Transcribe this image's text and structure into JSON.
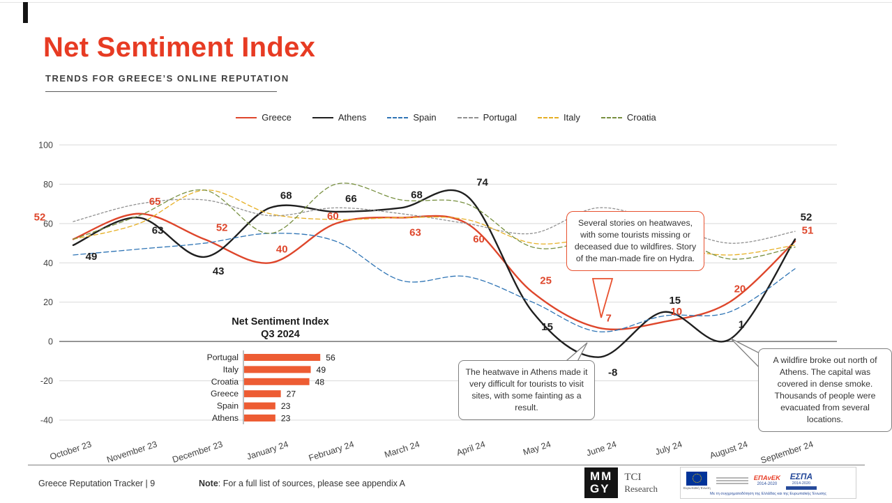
{
  "page": {
    "title": "Net Sentiment Index",
    "subtitle": "TRENDS FOR GREECE’S ONLINE REPUTATION"
  },
  "chart_data": [
    {
      "type": "line",
      "title": "Net Sentiment Index",
      "x": [
        "October 23",
        "November 23",
        "December 23",
        "January 24",
        "February 24",
        "March 24",
        "April 24",
        "May 24",
        "June 24",
        "July 24",
        "August 24",
        "September 24"
      ],
      "ylim": [
        -40,
        100
      ],
      "yticks": [
        100,
        80,
        60,
        40,
        20,
        0,
        -20,
        -40
      ],
      "grid": true,
      "legend_position": "top-center",
      "series": [
        {
          "name": "Greece",
          "color": "#de462b",
          "width": 2.4,
          "values": [
            52,
            65,
            52,
            40,
            60,
            63,
            60,
            25,
            7,
            10,
            20,
            51
          ],
          "point_labels": true,
          "label_dx": [
            -48,
            23,
            25,
            17,
            -4,
            20,
            17,
            19,
            15,
            18,
            15,
            18
          ],
          "label_dy": [
            -27,
            -13,
            -12,
            -15,
            -6,
            26,
            27,
            -12,
            -9,
            -10,
            -14,
            -11
          ]
        },
        {
          "name": "Athens",
          "color": "#1f1f1f",
          "width": 2.4,
          "values": [
            49,
            63,
            43,
            68,
            66,
            68,
            74,
            15,
            -8,
            15,
            1,
            52
          ],
          "point_labels": true,
          "label_dx": [
            26,
            27,
            20,
            23,
            22,
            22,
            22,
            21,
            21,
            16,
            17,
            16
          ],
          "label_dy": [
            21,
            23,
            25,
            -13,
            -14,
            -14,
            -15,
            26,
            27,
            -12,
            -17,
            -27
          ]
        },
        {
          "name": "Spain",
          "color": "#2e74b5",
          "width": 1.3,
          "dash_pattern": "7 4",
          "values": [
            44,
            47,
            50,
            55,
            51,
            31,
            33,
            20,
            5,
            13,
            15,
            37
          ],
          "point_labels": false
        },
        {
          "name": "Portugal",
          "color": "#909090",
          "width": 1.3,
          "dash_pattern": "3 3",
          "values": [
            61,
            70,
            72,
            64,
            68,
            65,
            60,
            55,
            68,
            60,
            50,
            56
          ],
          "point_labels": false
        },
        {
          "name": "Italy",
          "color": "#e6af23",
          "width": 1.3,
          "dash_pattern": "6 4",
          "values": [
            52,
            60,
            77,
            65,
            62,
            63,
            62,
            50,
            52,
            48,
            44,
            49
          ],
          "point_labels": false
        },
        {
          "name": "Croatia",
          "color": "#778f3f",
          "width": 1.3,
          "dash_pattern": "6 4",
          "values": [
            52,
            64,
            77,
            55,
            80,
            72,
            70,
            48,
            52,
            55,
            42,
            48
          ],
          "point_labels": false
        }
      ]
    },
    {
      "type": "bar",
      "orientation": "horizontal",
      "title_line1": "Net Sentiment Index",
      "title_line2": "Q3 2024",
      "categories": [
        "Portugal",
        "Italy",
        "Croatia",
        "Greece",
        "Spain",
        "Athens"
      ],
      "values": [
        56,
        49,
        48,
        27,
        23,
        23
      ],
      "bar_color": "#ed5c33"
    }
  ],
  "callouts": [
    {
      "text": "Several stories on heatwaves, with some tourists missing or deceased due to wildfires. Story of the man-made fire on Hydra.",
      "border_color": "#e8502e"
    },
    {
      "text": "The heatwave in Athens made it very difficult for tourists to visit sites, with some fainting as a result.",
      "border_color": "#7f7f7f"
    },
    {
      "text": "A wildfire broke out north of Athens. The capital was covered in dense smoke. Thousands of people were evacuated from several locations.",
      "border_color": "#7f7f7f"
    }
  ],
  "footer": {
    "left": "Greece Reputation Tracker  |  9",
    "note_label": "Note",
    "note_rest": ": For a full list of sources, please see appendix A",
    "mmgy": {
      "top": "MM",
      "bottom": "GY",
      "name_top": "TCI",
      "name_bottom": "Research"
    },
    "eu": {
      "flag_caption": "Ευρωπαϊκή Ένωση",
      "epanek": "ΕΠΑνΕΚ",
      "epanek_years": "2014-2020",
      "espa": "ΕΣΠΑ",
      "espa_years": "2014-2020",
      "cofunding": "Με τη συγχρηματοδότηση της Ελλάδας και της Ευρωπαϊκής Ένωσης"
    }
  }
}
